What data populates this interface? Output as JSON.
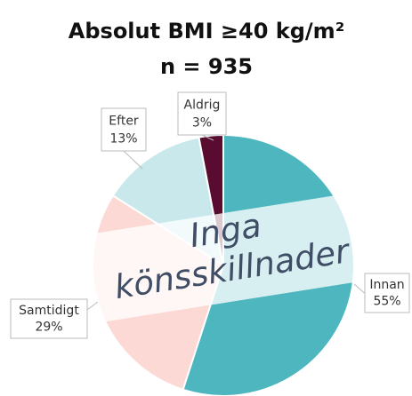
{
  "chart_data": {
    "type": "pie",
    "title": "Absolut BMI ≥40 kg/m²",
    "subtitle": "n = 935",
    "categories": [
      "Innan",
      "Samtidigt",
      "Efter",
      "Aldrig"
    ],
    "values": [
      55,
      29,
      13,
      3
    ],
    "value_labels": [
      "55%",
      "29%",
      "13%",
      "3%"
    ],
    "colors": [
      "#4db6bf",
      "#fcd9d4",
      "#c9e8ec",
      "#5a0b30"
    ],
    "annotation": "Inga könsskillnader"
  }
}
